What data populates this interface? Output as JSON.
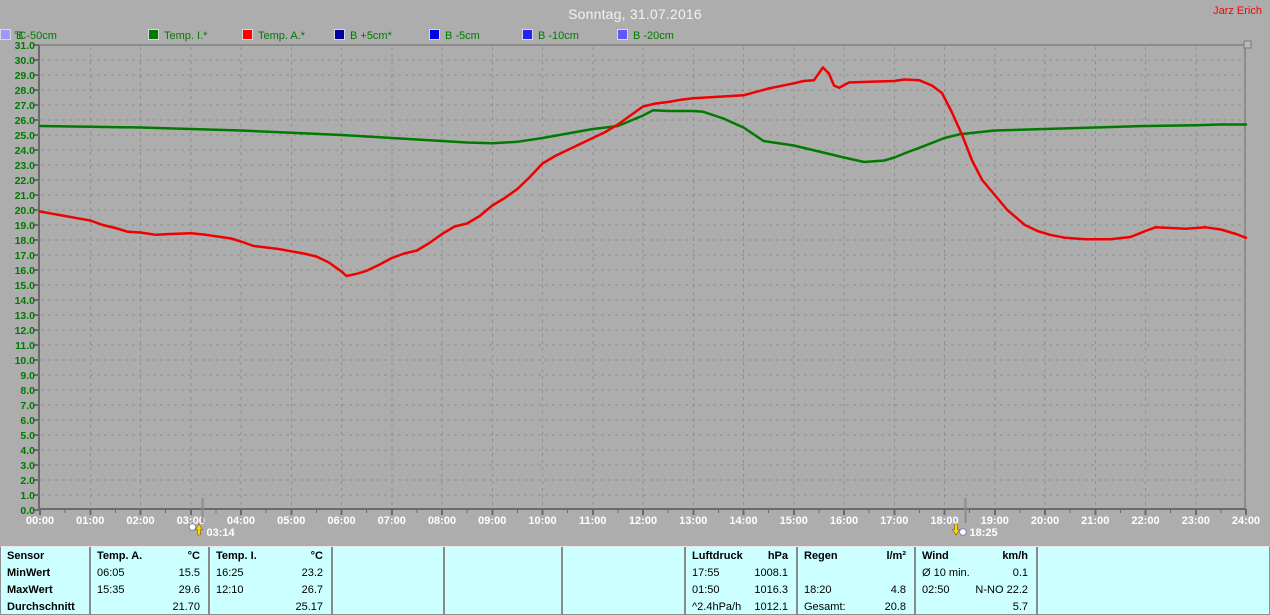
{
  "window": {
    "title": "Sonntag, 31.07.2016",
    "author": "Jarz Erich"
  },
  "legend": {
    "unit": "°C",
    "items": [
      {
        "id": "temp-i",
        "label": "Temp. I.*",
        "color": "#007A00"
      },
      {
        "id": "temp-a",
        "label": "Temp. A.*",
        "color": "#FF0000"
      },
      {
        "id": "b-plus5",
        "label": "B +5cm*",
        "color": "#0000A0"
      },
      {
        "id": "b-5cm",
        "label": "B -5cm",
        "color": "#0000E8"
      },
      {
        "id": "b-10cm",
        "label": "B -10cm",
        "color": "#2222FF"
      },
      {
        "id": "b-20cm",
        "label": "B -20cm",
        "color": "#5A5AFF"
      },
      {
        "id": "b-50cm",
        "label": "B -50cm",
        "color": "#9A9AFF"
      }
    ]
  },
  "chart_data": {
    "type": "line",
    "title": "Sonntag, 31.07.2016",
    "ylabel": "°C",
    "ylim": [
      0,
      31
    ],
    "y_tick_step": 1,
    "y_tick_format": "0.0",
    "x_hours": [
      0,
      24
    ],
    "grid": true,
    "legend_position": "top",
    "x_tick_labels": [
      "00:00",
      "01:00",
      "02:00",
      "03:00",
      "04:00",
      "05:00",
      "06:00",
      "07:00",
      "08:00",
      "09:00",
      "10:00",
      "11:00",
      "12:00",
      "13:00",
      "14:00",
      "15:00",
      "16:00",
      "17:00",
      "18:00",
      "19:00",
      "20:00",
      "21:00",
      "22:00",
      "23:00",
      "24:00"
    ],
    "series": [
      {
        "name": "Temp. I.*",
        "color": "#007A00",
        "points": [
          [
            0,
            25.6
          ],
          [
            1,
            25.55
          ],
          [
            2,
            25.5
          ],
          [
            3,
            25.4
          ],
          [
            4,
            25.3
          ],
          [
            5,
            25.15
          ],
          [
            6,
            25.0
          ],
          [
            7,
            24.8
          ],
          [
            8,
            24.6
          ],
          [
            8.5,
            24.5
          ],
          [
            9,
            24.45
          ],
          [
            9.5,
            24.55
          ],
          [
            10,
            24.8
          ],
          [
            10.5,
            25.1
          ],
          [
            11,
            25.4
          ],
          [
            11.5,
            25.6
          ],
          [
            12,
            26.3
          ],
          [
            12.2,
            26.65
          ],
          [
            12.5,
            26.6
          ],
          [
            13,
            26.6
          ],
          [
            13.2,
            26.55
          ],
          [
            13.6,
            26.1
          ],
          [
            14,
            25.5
          ],
          [
            14.4,
            24.6
          ],
          [
            15,
            24.3
          ],
          [
            15.5,
            23.9
          ],
          [
            16,
            23.5
          ],
          [
            16.4,
            23.2
          ],
          [
            16.8,
            23.3
          ],
          [
            17,
            23.5
          ],
          [
            17.3,
            23.9
          ],
          [
            17.5,
            24.15
          ],
          [
            18,
            24.8
          ],
          [
            18.3,
            25.05
          ],
          [
            19,
            25.3
          ],
          [
            19.5,
            25.35
          ],
          [
            20,
            25.4
          ],
          [
            21,
            25.5
          ],
          [
            22,
            25.6
          ],
          [
            23,
            25.65
          ],
          [
            23.5,
            25.7
          ],
          [
            24,
            25.7
          ]
        ]
      },
      {
        "name": "Temp. A.*",
        "color": "#F00000",
        "points": [
          [
            0,
            19.9
          ],
          [
            0.25,
            19.75
          ],
          [
            0.5,
            19.6
          ],
          [
            0.75,
            19.45
          ],
          [
            1,
            19.3
          ],
          [
            1.25,
            19.0
          ],
          [
            1.5,
            18.8
          ],
          [
            1.75,
            18.55
          ],
          [
            2,
            18.5
          ],
          [
            2.3,
            18.35
          ],
          [
            2.6,
            18.4
          ],
          [
            3,
            18.45
          ],
          [
            3.3,
            18.35
          ],
          [
            3.6,
            18.2
          ],
          [
            3.8,
            18.1
          ],
          [
            4,
            17.9
          ],
          [
            4.25,
            17.6
          ],
          [
            4.5,
            17.5
          ],
          [
            4.75,
            17.4
          ],
          [
            5,
            17.25
          ],
          [
            5.25,
            17.1
          ],
          [
            5.5,
            16.9
          ],
          [
            5.75,
            16.5
          ],
          [
            6,
            15.9
          ],
          [
            6.1,
            15.6
          ],
          [
            6.3,
            15.75
          ],
          [
            6.5,
            15.95
          ],
          [
            6.75,
            16.35
          ],
          [
            7,
            16.8
          ],
          [
            7.25,
            17.1
          ],
          [
            7.5,
            17.3
          ],
          [
            7.75,
            17.8
          ],
          [
            8,
            18.4
          ],
          [
            8.25,
            18.9
          ],
          [
            8.5,
            19.1
          ],
          [
            8.75,
            19.6
          ],
          [
            9,
            20.3
          ],
          [
            9.25,
            20.8
          ],
          [
            9.5,
            21.4
          ],
          [
            9.75,
            22.2
          ],
          [
            10,
            23.1
          ],
          [
            10.25,
            23.6
          ],
          [
            10.5,
            24.0
          ],
          [
            10.75,
            24.4
          ],
          [
            11,
            24.8
          ],
          [
            11.25,
            25.2
          ],
          [
            11.5,
            25.7
          ],
          [
            11.75,
            26.3
          ],
          [
            12,
            26.9
          ],
          [
            12.25,
            27.1
          ],
          [
            12.5,
            27.2
          ],
          [
            12.75,
            27.35
          ],
          [
            13,
            27.45
          ],
          [
            13.5,
            27.55
          ],
          [
            14,
            27.65
          ],
          [
            14.5,
            28.1
          ],
          [
            15,
            28.45
          ],
          [
            15.2,
            28.6
          ],
          [
            15.4,
            28.65
          ],
          [
            15.58,
            29.5
          ],
          [
            15.7,
            29.1
          ],
          [
            15.8,
            28.3
          ],
          [
            15.9,
            28.15
          ],
          [
            16.1,
            28.5
          ],
          [
            16.5,
            28.55
          ],
          [
            17,
            28.6
          ],
          [
            17.2,
            28.7
          ],
          [
            17.5,
            28.65
          ],
          [
            17.75,
            28.3
          ],
          [
            17.95,
            27.8
          ],
          [
            18.15,
            26.5
          ],
          [
            18.35,
            25.0
          ],
          [
            18.55,
            23.3
          ],
          [
            18.75,
            22.0
          ],
          [
            19,
            21.0
          ],
          [
            19.25,
            20.0
          ],
          [
            19.6,
            19.0
          ],
          [
            19.85,
            18.6
          ],
          [
            20.1,
            18.35
          ],
          [
            20.4,
            18.15
          ],
          [
            20.8,
            18.05
          ],
          [
            21.3,
            18.05
          ],
          [
            21.7,
            18.2
          ],
          [
            22,
            18.6
          ],
          [
            22.2,
            18.85
          ],
          [
            22.5,
            18.8
          ],
          [
            22.8,
            18.75
          ],
          [
            23,
            18.8
          ],
          [
            23.2,
            18.85
          ],
          [
            23.5,
            18.7
          ],
          [
            23.8,
            18.4
          ],
          [
            24,
            18.15
          ]
        ]
      }
    ],
    "sun_markers": [
      {
        "type": "sunrise",
        "icon": "sunrise-icon",
        "time": "03:14",
        "hours": 3.233
      },
      {
        "type": "sunset",
        "icon": "sunset-icon",
        "time": "18:25",
        "hours": 18.417
      }
    ]
  },
  "stats_table": {
    "row_labels": [
      "Sensor",
      "MinWert",
      "MaxWert",
      "Durchschnitt"
    ],
    "columns": [
      {
        "id": "temp-a",
        "label": "Temp. A.",
        "unit": "°C",
        "min": {
          "l": "06:05",
          "r": "15.5"
        },
        "max": {
          "l": "15:35",
          "r": "29.6"
        },
        "avg": {
          "l": "",
          "r": "21.70"
        }
      },
      {
        "id": "temp-i",
        "label": "Temp. I.",
        "unit": "°C",
        "min": {
          "l": "16:25",
          "r": "23.2"
        },
        "max": {
          "l": "12:10",
          "r": "26.7"
        },
        "avg": {
          "l": "",
          "r": "25.17"
        }
      },
      {
        "id": "empty-1",
        "label": "",
        "unit": "",
        "min": {
          "l": "",
          "r": ""
        },
        "max": {
          "l": "",
          "r": ""
        },
        "avg": {
          "l": "",
          "r": ""
        }
      },
      {
        "id": "empty-2",
        "label": "",
        "unit": "",
        "min": {
          "l": "",
          "r": ""
        },
        "max": {
          "l": "",
          "r": ""
        },
        "avg": {
          "l": "",
          "r": ""
        }
      },
      {
        "id": "empty-3",
        "label": "",
        "unit": "",
        "min": {
          "l": "",
          "r": ""
        },
        "max": {
          "l": "",
          "r": ""
        },
        "avg": {
          "l": "",
          "r": ""
        }
      },
      {
        "id": "luftdruck",
        "label": "Luftdruck",
        "unit": "hPa",
        "min": {
          "l": "17:55",
          "r": "1008.1"
        },
        "max": {
          "l": "01:50",
          "r": "1016.3"
        },
        "avg": {
          "l": "^2.4hPa/h",
          "r": "1012.1"
        }
      },
      {
        "id": "regen",
        "label": "Regen",
        "unit": "l/m²",
        "min": {
          "l": "",
          "r": ""
        },
        "max": {
          "l": "18:20",
          "r": "4.8"
        },
        "avg": {
          "l": "Gesamt:",
          "r": "20.8"
        }
      },
      {
        "id": "wind",
        "label": "Wind",
        "unit": "km/h",
        "min": {
          "l": "Ø 10 min.",
          "r": "0.1"
        },
        "max": {
          "l": "02:50",
          "r": "N-NO 22.2"
        },
        "avg": {
          "l": "",
          "r": "5.7"
        }
      }
    ]
  },
  "colors": {
    "background": "#ADADAD",
    "grid": "#8F8F8F",
    "axis": "#6A6A6A",
    "x_label": "#FFFFFF",
    "y_label": "#007A00",
    "title": "#F2F2F2",
    "author": "#FF0000",
    "table_bg": "#CCFFFF",
    "table_sep": "#8A8A8A"
  }
}
